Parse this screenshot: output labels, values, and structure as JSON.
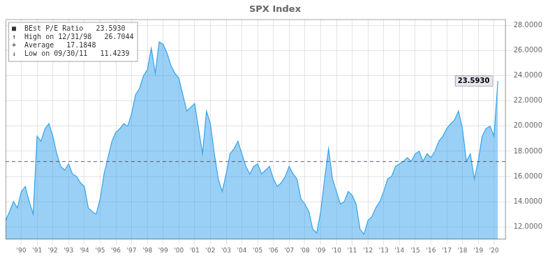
{
  "chart_data": {
    "type": "area",
    "title": "SPX Index",
    "x": [
      1989.0,
      1989.25,
      1989.5,
      1989.75,
      1990.0,
      1990.25,
      1990.5,
      1990.75,
      1991.0,
      1991.25,
      1991.5,
      1991.75,
      1992.0,
      1992.25,
      1992.5,
      1992.75,
      1993.0,
      1993.25,
      1993.5,
      1993.75,
      1994.0,
      1994.25,
      1994.5,
      1994.75,
      1995.0,
      1995.25,
      1995.5,
      1995.75,
      1996.0,
      1996.25,
      1996.5,
      1996.75,
      1997.0,
      1997.25,
      1997.5,
      1997.75,
      1998.0,
      1998.25,
      1998.5,
      1998.75,
      1999.0,
      1999.25,
      1999.5,
      1999.75,
      2000.0,
      2000.25,
      2000.5,
      2000.75,
      2001.0,
      2001.25,
      2001.5,
      2001.75,
      2002.0,
      2002.25,
      2002.5,
      2002.75,
      2003.0,
      2003.25,
      2003.5,
      2003.75,
      2004.0,
      2004.25,
      2004.5,
      2004.75,
      2005.0,
      2005.25,
      2005.5,
      2005.75,
      2006.0,
      2006.25,
      2006.5,
      2006.75,
      2007.0,
      2007.25,
      2007.5,
      2007.75,
      2008.0,
      2008.25,
      2008.5,
      2008.75,
      2009.0,
      2009.25,
      2009.5,
      2009.75,
      2010.0,
      2010.25,
      2010.5,
      2010.75,
      2011.0,
      2011.25,
      2011.5,
      2011.75,
      2012.0,
      2012.25,
      2012.5,
      2012.75,
      2013.0,
      2013.25,
      2013.5,
      2013.75,
      2014.0,
      2014.25,
      2014.5,
      2014.75,
      2015.0,
      2015.25,
      2015.5,
      2015.75,
      2016.0,
      2016.25,
      2016.5,
      2016.75,
      2017.0,
      2017.25,
      2017.5,
      2017.75,
      2018.0,
      2018.25,
      2018.5,
      2018.75,
      2019.0,
      2019.25,
      2019.5,
      2019.75,
      2020.0,
      2020.25
    ],
    "values": [
      12.5,
      13.2,
      14.0,
      13.5,
      14.8,
      15.2,
      14.0,
      13.0,
      19.2,
      18.8,
      19.8,
      20.2,
      19.2,
      17.8,
      16.8,
      16.5,
      17.0,
      16.2,
      16.0,
      15.5,
      15.2,
      13.5,
      13.2,
      13.0,
      14.2,
      16.2,
      17.5,
      18.8,
      19.5,
      19.8,
      20.2,
      20.0,
      21.0,
      22.5,
      23.0,
      24.0,
      24.5,
      26.2,
      24.2,
      26.7,
      26.5,
      25.8,
      24.8,
      24.2,
      23.8,
      22.5,
      21.2,
      21.5,
      21.8,
      19.8,
      17.8,
      21.2,
      20.2,
      17.8,
      15.8,
      14.8,
      16.2,
      17.8,
      18.2,
      18.8,
      17.8,
      16.8,
      16.2,
      16.8,
      17.0,
      16.2,
      16.5,
      16.8,
      15.8,
      15.2,
      15.5,
      16.0,
      16.8,
      16.2,
      15.8,
      14.2,
      13.8,
      13.2,
      11.8,
      11.5,
      13.2,
      15.8,
      18.2,
      15.8,
      14.8,
      13.8,
      14.0,
      14.8,
      14.5,
      13.8,
      11.8,
      11.42,
      12.5,
      12.8,
      13.5,
      14.0,
      14.8,
      15.8,
      16.0,
      16.8,
      17.0,
      17.2,
      17.5,
      17.2,
      17.8,
      18.0,
      17.2,
      17.8,
      17.5,
      18.0,
      18.8,
      19.2,
      19.8,
      20.2,
      20.5,
      21.2,
      19.8,
      17.2,
      17.8,
      15.8,
      17.2,
      19.2,
      19.8,
      20.0,
      19.2,
      23.59
    ],
    "xlim": [
      1989.0,
      2020.75
    ],
    "xticks": [
      {
        "value": 1990,
        "label": "'90"
      },
      {
        "value": 1991,
        "label": "'91"
      },
      {
        "value": 1992,
        "label": "'92"
      },
      {
        "value": 1993,
        "label": "'93"
      },
      {
        "value": 1994,
        "label": "'94"
      },
      {
        "value": 1995,
        "label": "'95"
      },
      {
        "value": 1996,
        "label": "'96"
      },
      {
        "value": 1997,
        "label": "'97"
      },
      {
        "value": 1998,
        "label": "'98"
      },
      {
        "value": 1999,
        "label": "'99"
      },
      {
        "value": 2000,
        "label": "'00"
      },
      {
        "value": 2001,
        "label": "'01"
      },
      {
        "value": 2002,
        "label": "'02"
      },
      {
        "value": 2003,
        "label": "'03"
      },
      {
        "value": 2004,
        "label": "'04"
      },
      {
        "value": 2005,
        "label": "'05"
      },
      {
        "value": 2006,
        "label": "'06"
      },
      {
        "value": 2007,
        "label": "'07"
      },
      {
        "value": 2008,
        "label": "'08"
      },
      {
        "value": 2009,
        "label": "'09"
      },
      {
        "value": 2010,
        "label": "'10"
      },
      {
        "value": 2011,
        "label": "'11"
      },
      {
        "value": 2012,
        "label": "'12"
      },
      {
        "value": 2013,
        "label": "'13"
      },
      {
        "value": 2014,
        "label": "'14"
      },
      {
        "value": 2015,
        "label": "'15"
      },
      {
        "value": 2016,
        "label": "'16"
      },
      {
        "value": 2017,
        "label": "'17"
      },
      {
        "value": 2018,
        "label": "'18"
      },
      {
        "value": 2019,
        "label": "'19"
      },
      {
        "value": 2020,
        "label": "'20"
      }
    ],
    "ylim": [
      11.0,
      28.5
    ],
    "yticks": [
      {
        "value": 12.0,
        "label": "12.0000"
      },
      {
        "value": 14.0,
        "label": "14.0000"
      },
      {
        "value": 16.0,
        "label": "16.0000"
      },
      {
        "value": 18.0,
        "label": "18.0000"
      },
      {
        "value": 20.0,
        "label": "20.0000"
      },
      {
        "value": 22.0,
        "label": "22.0000"
      },
      {
        "value": 24.0,
        "label": "24.0000"
      },
      {
        "value": 26.0,
        "label": "26.0000"
      },
      {
        "value": 28.0,
        "label": "28.0000"
      }
    ],
    "grid": true,
    "average_value": 17.1848,
    "annotations": [
      "■  BEst P/E Ratio   23.5930",
      "↑  High on 12/31/98   26.7044",
      "+  Average   17.1848",
      "↓  Low on 09/30/11   11.4239"
    ],
    "current_label": "23.5930"
  }
}
